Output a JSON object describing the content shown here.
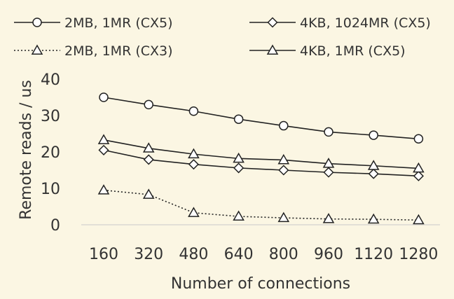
{
  "chart_data": {
    "type": "line",
    "title": "",
    "xlabel": "Number of connections",
    "ylabel": "Remote reads / us",
    "categories": [
      "160",
      "320",
      "480",
      "640",
      "800",
      "960",
      "1120",
      "1280"
    ],
    "ylim": [
      0,
      40
    ],
    "yticks": [
      "0",
      "10",
      "20",
      "30",
      "40"
    ],
    "grid": false,
    "legend_position": "top",
    "series": [
      {
        "name": "2MB, 1MR (CX5)",
        "marker": "circle",
        "line": "solid",
        "values": [
          35.0,
          33.0,
          31.2,
          29.0,
          27.2,
          25.5,
          24.6,
          23.6
        ]
      },
      {
        "name": "4KB, 1024MR (CX5)",
        "marker": "diamond",
        "line": "solid",
        "values": [
          20.5,
          17.9,
          16.6,
          15.6,
          15.0,
          14.4,
          14.0,
          13.4
        ]
      },
      {
        "name": "2MB, 1MR (CX3)",
        "marker": "triangle",
        "line": "dotted",
        "values": [
          9.5,
          8.3,
          3.3,
          2.3,
          1.9,
          1.6,
          1.5,
          1.3
        ]
      },
      {
        "name": "4KB, 1MR (CX5)",
        "marker": "triangle",
        "line": "solid",
        "values": [
          23.3,
          21.0,
          19.4,
          18.2,
          17.8,
          16.8,
          16.2,
          15.5
        ]
      }
    ],
    "colors": {
      "background": "#fbf6e3",
      "line": "#222222",
      "marker_fill": "#ffffff",
      "axis": "#c8c8c8",
      "text": "#333333"
    }
  }
}
